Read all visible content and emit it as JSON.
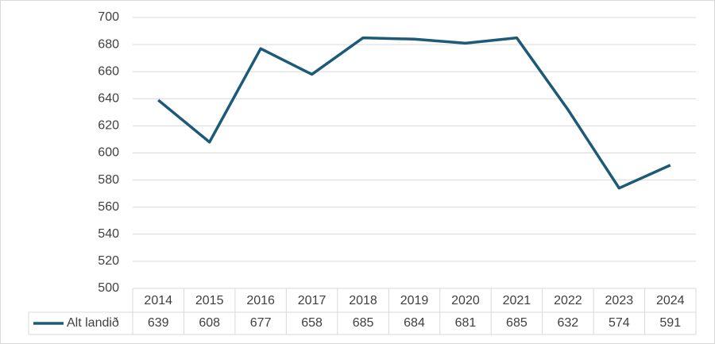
{
  "chart_data": {
    "type": "line",
    "categories": [
      "2014",
      "2015",
      "2016",
      "2017",
      "2018",
      "2019",
      "2020",
      "2021",
      "2022",
      "2023",
      "2024"
    ],
    "series": [
      {
        "name": "Alt landið",
        "color": "#1d5a78",
        "values": [
          639,
          608,
          677,
          658,
          685,
          684,
          681,
          685,
          632,
          574,
          591
        ]
      }
    ],
    "ylim": [
      500,
      700
    ],
    "yticks": [
      500,
      520,
      540,
      560,
      580,
      600,
      620,
      640,
      660,
      680,
      700
    ],
    "grid": true,
    "data_table": true
  }
}
